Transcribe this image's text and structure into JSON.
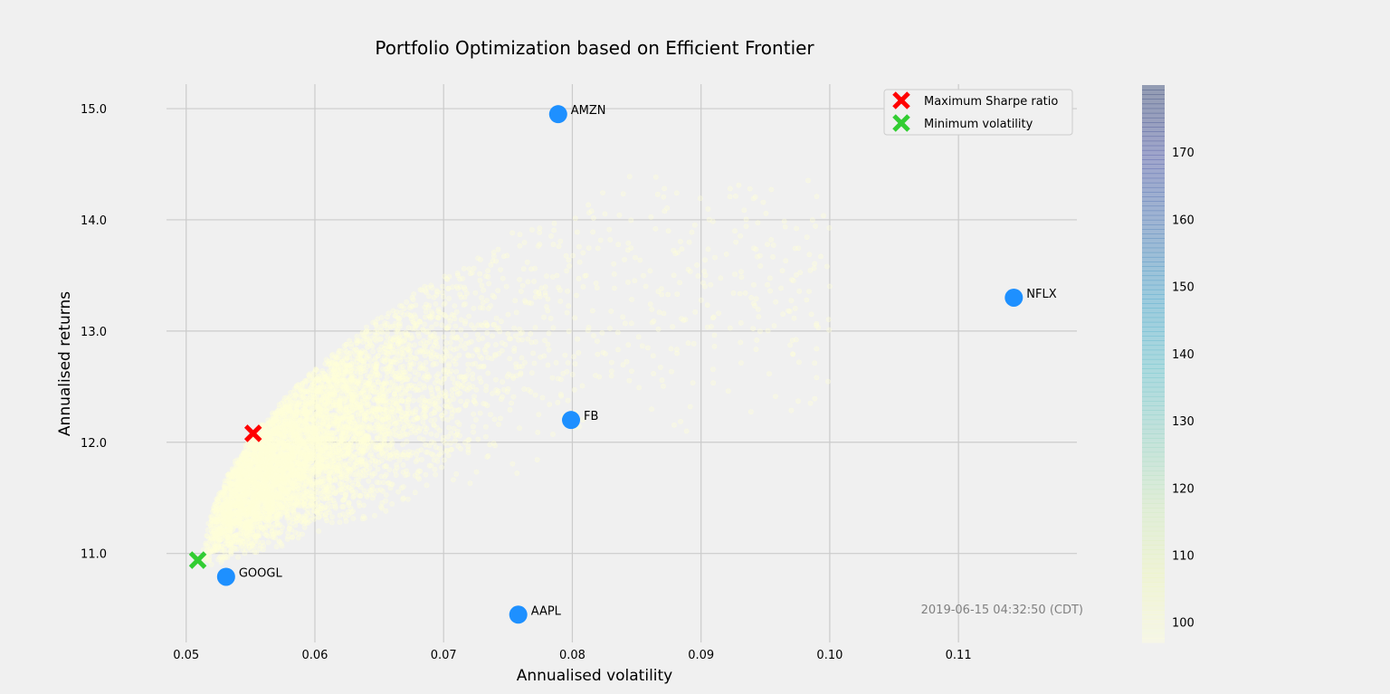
{
  "chart_data": {
    "type": "scatter",
    "title": "Portfolio Optimization based on Efficient Frontier",
    "xlabel": "Annualised volatility",
    "ylabel": "Annualised returns",
    "xlim": [
      0.0458,
      0.1192
    ],
    "ylim": [
      10.2,
      15.22
    ],
    "xticks": [
      "0.05",
      "0.06",
      "0.07",
      "0.08",
      "0.09",
      "0.10",
      "0.11"
    ],
    "xtick_values": [
      0.05,
      0.06,
      0.07,
      0.08,
      0.09,
      0.1,
      0.11
    ],
    "yticks": [
      "11.0",
      "12.0",
      "13.0",
      "14.0",
      "15.0"
    ],
    "ytick_values": [
      11.0,
      12.0,
      13.0,
      14.0,
      15.0
    ],
    "grid": true,
    "colorbar": {
      "range": [
        97,
        180
      ],
      "ticks": [
        "100",
        "110",
        "120",
        "130",
        "140",
        "150",
        "160",
        "170"
      ],
      "tick_values": [
        100,
        110,
        120,
        130,
        140,
        150,
        160,
        170
      ],
      "colormap": "YlGnBu",
      "alpha": 0.3
    },
    "simulated_portfolios": {
      "description_count": 6000,
      "ridge": [
        [
          0.0515,
          11.05
        ],
        [
          0.055,
          11.8
        ],
        [
          0.06,
          12.55
        ],
        [
          0.065,
          13.05
        ],
        [
          0.07,
          13.45
        ],
        [
          0.075,
          13.8
        ]
      ],
      "upper_tail": [
        [
          0.0515,
          11.05
        ],
        [
          0.058,
          12.4
        ],
        [
          0.064,
          13.35
        ],
        [
          0.07,
          13.95
        ],
        [
          0.075,
          14.2
        ],
        [
          0.0785,
          14.05
        ]
      ],
      "lower_tail": [
        [
          0.0515,
          10.85
        ],
        [
          0.06,
          11.2
        ],
        [
          0.07,
          11.7
        ],
        [
          0.08,
          12.3
        ],
        [
          0.088,
          12.7
        ],
        [
          0.1,
          12.9
        ],
        [
          0.105,
          13.1
        ]
      ]
    },
    "stocks": [
      {
        "name": "AMZN",
        "x": 0.0789,
        "y": 14.95
      },
      {
        "name": "NFLX",
        "x": 0.1143,
        "y": 13.3
      },
      {
        "name": "FB",
        "x": 0.0799,
        "y": 12.2
      },
      {
        "name": "GOOGL",
        "x": 0.0531,
        "y": 10.79
      },
      {
        "name": "AAPL",
        "x": 0.0758,
        "y": 10.45
      }
    ],
    "stock_color": "#1e90ff",
    "max_sharpe": {
      "x": 0.0552,
      "y": 12.08,
      "color": "#ff0000"
    },
    "min_volatility": {
      "x": 0.0509,
      "y": 10.94,
      "color": "#32cd32"
    },
    "legend": {
      "placement": "top-right",
      "entries": [
        {
          "label": "Maximum Sharpe ratio",
          "color": "#ff0000"
        },
        {
          "label": "Minimum volatility",
          "color": "#32cd32"
        }
      ]
    },
    "annotation": "2019-06-15 04:32:50 (CDT)"
  }
}
